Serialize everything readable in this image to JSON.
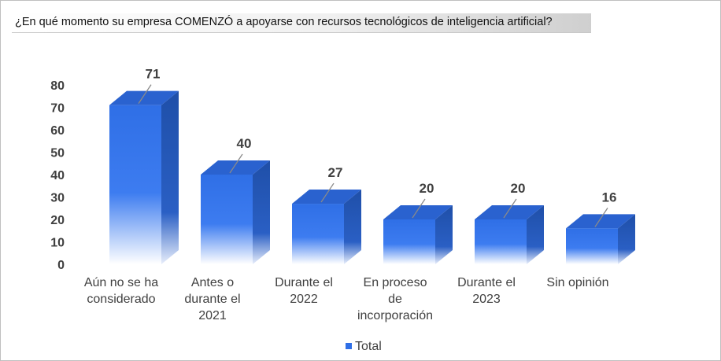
{
  "title": "¿En qué momento su empresa COMENZÓ a apoyarse con recursos tecnológicos de inteligencia artificial?",
  "chart_data": {
    "type": "bar",
    "categories": [
      [
        "Aún no se ha",
        "considerado"
      ],
      [
        "Antes o",
        "durante el",
        "2021"
      ],
      [
        "Durante el",
        "2022"
      ],
      [
        "En proceso",
        "de",
        "incorporación"
      ],
      [
        "Durante el",
        "2023"
      ],
      [
        "Sin opinión"
      ]
    ],
    "series": [
      {
        "name": "Total",
        "values": [
          71,
          40,
          27,
          20,
          20,
          16
        ]
      }
    ],
    "data_labels": [
      "71",
      "40",
      "27",
      "20",
      "20",
      "16"
    ],
    "yticks": [
      "0",
      "10",
      "20",
      "30",
      "40",
      "50",
      "60",
      "70",
      "80"
    ],
    "ylim": [
      0,
      80
    ],
    "legend": "bottom",
    "grid": false,
    "colors": {
      "bar_front": "#2f6fe6",
      "bar_side": "#1f4fa8",
      "bar_top": "#2a62cf"
    }
  }
}
